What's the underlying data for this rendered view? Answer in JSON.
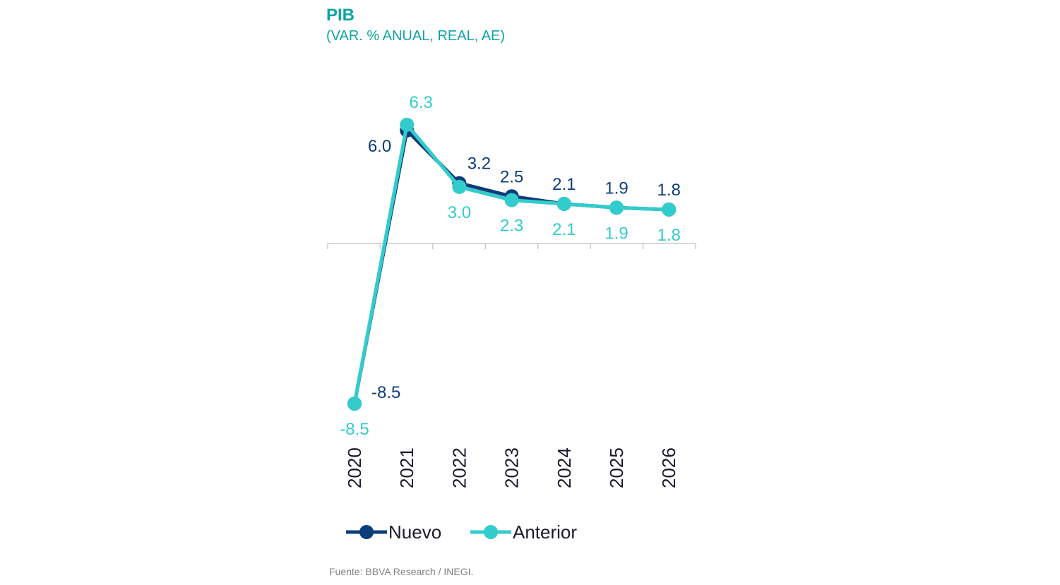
{
  "title": "PIB",
  "subtitle": "(VAR. % ANUAL, REAL, AE)",
  "source": "Fuente: BBVA Research / INEGI.",
  "colors": {
    "nuevo": "#0b3d7a",
    "anterior": "#33cccc",
    "title": "#0ca3a3",
    "axis": "#c8c8c8"
  },
  "chart_data": {
    "type": "line",
    "categories": [
      "2020",
      "2021",
      "2022",
      "2023",
      "2024",
      "2025",
      "2026"
    ],
    "series": [
      {
        "name": "Nuevo",
        "values": [
          -8.5,
          6.0,
          3.2,
          2.5,
          2.1,
          1.9,
          1.8
        ]
      },
      {
        "name": "Anterior",
        "values": [
          -8.5,
          6.3,
          3.0,
          2.3,
          2.1,
          1.9,
          1.8
        ]
      }
    ],
    "value_labels": {
      "Nuevo": [
        "-8.5",
        "6.0",
        "3.2",
        "2.5",
        "2.1",
        "1.9",
        "1.8"
      ],
      "Anterior": [
        "-8.5",
        "6.3",
        "3.0",
        "2.3",
        "2.1",
        "1.9",
        "1.8"
      ]
    },
    "ylim": [
      -9.5,
      7.5
    ],
    "grid": false,
    "legend": "bottom",
    "xlabel": "",
    "ylabel": ""
  }
}
